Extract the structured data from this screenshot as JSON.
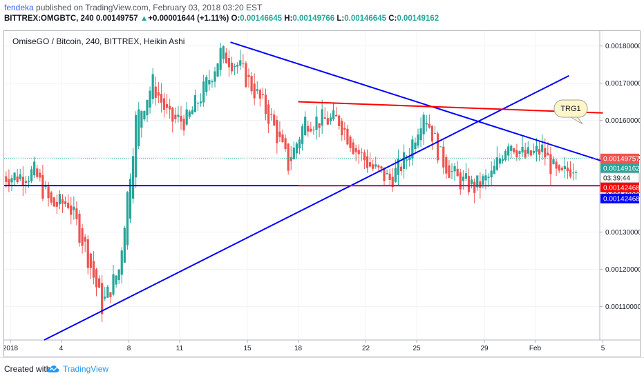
{
  "header": {
    "author": "fendeka",
    "published": " published on TradingView.com, February 03, 2018 03:20 EST",
    "symbol": "BITTREX:OMGBTC, 240",
    "last": "0.00149757",
    "change_arrow": "▲",
    "change": "+0.00001644 (+1.11%)",
    "o_label": "O:",
    "o_value": "0.00146645",
    "h_label": "H:",
    "h_value": "0.00149766",
    "l_label": "L:",
    "l_value": "0.00146645",
    "c_label": "C:",
    "c_value": "0.00149162"
  },
  "footer": {
    "created_with": "Created with",
    "brand": "TradingView"
  },
  "colors": {
    "up": "#26a69a",
    "down": "#ef5350",
    "trend_blue": "#0000ff",
    "trend_red": "#ff0000"
  },
  "chart_data": {
    "type": "candlestick",
    "title": "OmiseGO / Bitcoin, 240, BITTREX, Heikin Ashi",
    "x_tick_labels": [
      "2018",
      "4",
      "8",
      "11",
      "15",
      "18",
      "22",
      "25",
      "29",
      "Feb",
      "5"
    ],
    "y_tick_labels": [
      "0.00110000",
      "0.00120000",
      "0.00130000",
      "0.00140000",
      "0.00150000",
      "0.00160000",
      "0.00170000",
      "0.00180000"
    ],
    "ylim": [
      0.00101,
      0.00184
    ],
    "price_labels": [
      {
        "text": "0.00149757",
        "kind": "last"
      },
      {
        "text": "0.00149162",
        "kind": "close"
      },
      {
        "text": "03:39:44",
        "kind": "countdown"
      },
      {
        "text": "0.00142468",
        "kind": "red-line"
      },
      {
        "text": "0.00142468",
        "kind": "blue-line"
      }
    ],
    "annotation": "TRG1",
    "candles_approx": [
      {
        "date": "Jan 1",
        "close": 0.00145
      },
      {
        "date": "Jan 2",
        "close": 0.00146
      },
      {
        "date": "Jan 3",
        "close": 0.00137
      },
      {
        "date": "Jan 4",
        "close": 0.00138
      },
      {
        "date": "Jan 5",
        "close": 0.00126
      },
      {
        "date": "Jan 6",
        "close": 0.0011
      },
      {
        "date": "Jan 7",
        "close": 0.0012
      },
      {
        "date": "Jan 8",
        "close": 0.0016
      },
      {
        "date": "Jan 9",
        "close": 0.0017
      },
      {
        "date": "Jan 10",
        "close": 0.0016
      },
      {
        "date": "Jan 11",
        "close": 0.0016
      },
      {
        "date": "Jan 12",
        "close": 0.00168
      },
      {
        "date": "Jan 13",
        "close": 0.00178
      },
      {
        "date": "Jan 14",
        "close": 0.00175
      },
      {
        "date": "Jan 15",
        "close": 0.00168
      },
      {
        "date": "Jan 16",
        "close": 0.0016
      },
      {
        "date": "Jan 17",
        "close": 0.00148
      },
      {
        "date": "Jan 18",
        "close": 0.0016
      },
      {
        "date": "Jan 19",
        "close": 0.0016
      },
      {
        "date": "Jan 20",
        "close": 0.0016
      },
      {
        "date": "Jan 21",
        "close": 0.00152
      },
      {
        "date": "Jan 22",
        "close": 0.00147
      },
      {
        "date": "Jan 23",
        "close": 0.00144
      },
      {
        "date": "Jan 24",
        "close": 0.0015
      },
      {
        "date": "Jan 25",
        "close": 0.00163
      },
      {
        "date": "Jan 26",
        "close": 0.0015
      },
      {
        "date": "Jan 27",
        "close": 0.00144
      },
      {
        "date": "Jan 28",
        "close": 0.00142
      },
      {
        "date": "Jan 29",
        "close": 0.00145
      },
      {
        "date": "Jan 30",
        "close": 0.00155
      },
      {
        "date": "Jan 31",
        "close": 0.0015
      },
      {
        "date": "Feb 1",
        "close": 0.00152
      },
      {
        "date": "Feb 2",
        "close": 0.00144
      },
      {
        "date": "Feb 3",
        "close": 0.00149
      }
    ],
    "trend_lines_price": [
      {
        "name": "upper-blue-trend",
        "color": "blue",
        "from": {
          "date": "Jan 14",
          "price": 0.00181
        },
        "to": {
          "date": "Feb 5",
          "price": 0.00149
        }
      },
      {
        "name": "rising-blue-trend",
        "color": "blue",
        "from": {
          "date": "Jan 3",
          "price": 0.00101
        },
        "to": {
          "date": "Feb 3",
          "price": 0.00172
        }
      },
      {
        "name": "horizontal-blue-support",
        "color": "blue",
        "price": 0.00142468
      },
      {
        "name": "upper-red-resistance",
        "color": "red",
        "from": {
          "date": "Jan 18",
          "price": 0.00165
        },
        "to": {
          "date": "Feb 5",
          "price": 0.00162
        }
      },
      {
        "name": "lower-red-support",
        "color": "red",
        "price": 0.00142468
      }
    ]
  }
}
